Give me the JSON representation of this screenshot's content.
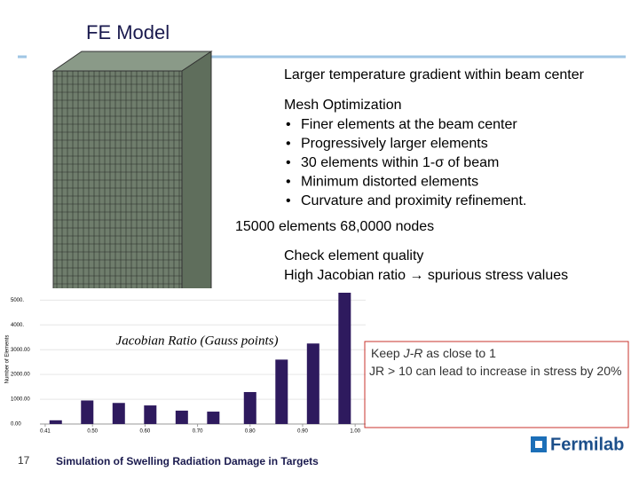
{
  "header": {
    "title": "FE Model"
  },
  "notes": {
    "gradient": "Larger temperature gradient within beam center",
    "mesh_heading": "Mesh Optimization",
    "mesh_bullets": [
      "Finer elements at the beam center",
      "Progressively larger elements",
      "30 elements within 1-σ of beam",
      "Minimum distorted elements",
      "Curvature and proximity refinement."
    ],
    "counts": "15000 elements  68,0000 nodes",
    "quality": "Check element quality",
    "jacobian": "High Jacobian ratio → spurious stress values"
  },
  "callout": {
    "line1_pre": "Keep ",
    "line1_em": "J-R",
    "line1_post": " as close to 1",
    "line2": "JR > 10 can lead to increase in stress by 20%"
  },
  "histogram": {
    "title": "Jacobian Ratio (Gauss points)",
    "y_label": "Number of Elements",
    "x": [
      0.43,
      0.49,
      0.55,
      0.61,
      0.67,
      0.73,
      0.8,
      0.86,
      0.92,
      0.98
    ],
    "values": [
      150,
      950,
      850,
      750,
      540,
      500,
      1290,
      2600,
      3250,
      5300
    ],
    "color": "#2e1a5e",
    "xlim": [
      0.4,
      1.02
    ],
    "ylim": [
      0,
      5300
    ],
    "xticks": [
      0.41,
      {
        "value": 0.5,
        "label": "0.50"
      },
      {
        "value": 0.6,
        "label": "0.60"
      },
      {
        "value": 0.7,
        "label": "0.70"
      },
      {
        "value": 0.8,
        "label": "0.80"
      },
      {
        "value": 0.9,
        "label": "0.90"
      },
      {
        "value": 1.0,
        "label": "1.00"
      }
    ],
    "yticks": [
      {
        "value": 0,
        "label": "0.00"
      },
      {
        "value": 1000,
        "label": "1000.00"
      },
      {
        "value": 2000,
        "label": "2000.00"
      },
      {
        "value": 3000,
        "label": "3000.00"
      },
      {
        "value": 4000,
        "label": "4000."
      },
      {
        "value": 5000,
        "label": "5000."
      }
    ]
  },
  "footer": {
    "page": "17",
    "caption": "Simulation of Swelling Radiation Damage in Targets",
    "logo": "Fermilab"
  }
}
